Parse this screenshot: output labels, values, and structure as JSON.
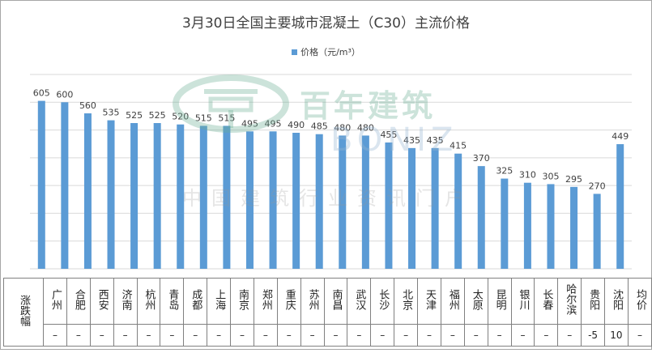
{
  "chart_data": {
    "type": "bar",
    "title": "3月30日全国主要城市混凝土（C30）主流价格",
    "legend": "价格（元/m³）",
    "legend_position": "top",
    "series_color": "#5b9bd5",
    "grid": true,
    "ylim": [
      0,
      700
    ],
    "categories": [
      "广州",
      "合肥",
      "西安",
      "济南",
      "杭州",
      "青岛",
      "成都",
      "上海",
      "南京",
      "郑州",
      "重庆",
      "苏州",
      "南昌",
      "武汉",
      "长沙",
      "北京",
      "天津",
      "福州",
      "太原",
      "昆明",
      "银川",
      "长春",
      "哈尔滨",
      "贵阳",
      "沈阳",
      "均价"
    ],
    "values": [
      605,
      600,
      560,
      535,
      525,
      525,
      520,
      515,
      515,
      495,
      495,
      490,
      485,
      480,
      480,
      455,
      435,
      435,
      415,
      370,
      325,
      310,
      305,
      295,
      270,
      449
    ],
    "value_labels": [
      "605",
      "600",
      "560",
      "535",
      "525",
      "525",
      "520",
      "515",
      "515",
      "495",
      "495",
      "490",
      "485",
      "480",
      "480",
      "455",
      "435",
      "435",
      "415",
      "370",
      "325",
      "310",
      "305",
      "295",
      "270",
      "449"
    ]
  },
  "change_table": {
    "row_label": "涨跌幅",
    "changes": [
      "–",
      "–",
      "–",
      "–",
      "–",
      "–",
      "–",
      "–",
      "–",
      "–",
      "–",
      "–",
      "–",
      "–",
      "–",
      "–",
      "–",
      "–",
      "–",
      "–",
      "–",
      "–",
      "–",
      "-5",
      "10",
      "–"
    ],
    "positive_color": "#c00000",
    "negative_color": "#00a040"
  },
  "watermark": {
    "brand": "百年建筑",
    "latin": "BONIZ",
    "tagline": "中国建筑行业资讯门户"
  }
}
